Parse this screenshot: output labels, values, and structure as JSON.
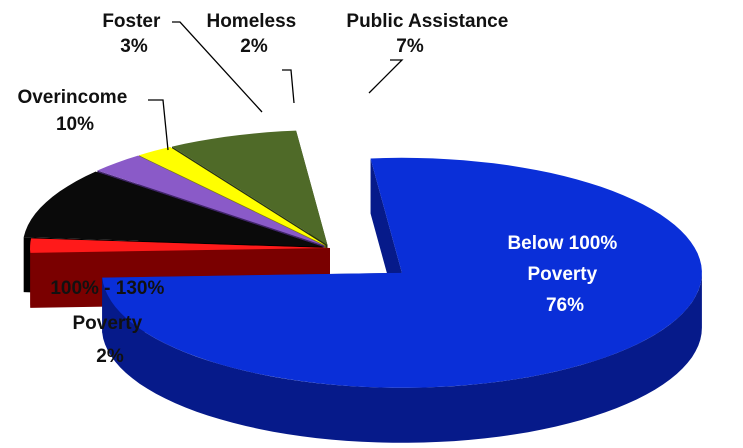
{
  "chart_data": {
    "type": "pie",
    "style": "3d-exploded",
    "title": "",
    "slices": [
      {
        "key": "below100",
        "label_lines": [
          "Below 100%",
          "Poverty",
          "76%"
        ],
        "value": 76,
        "color": "#0a2fd8",
        "side": "#061a8a"
      },
      {
        "key": "r100_130",
        "label_lines": [
          "100% - 130%",
          "Poverty",
          "2%"
        ],
        "value": 2,
        "color": "#ff1a1a",
        "side": "#7a0000"
      },
      {
        "key": "overincome",
        "label_lines": [
          "Overincome",
          "10%"
        ],
        "value": 10,
        "color": "#0a0a0a",
        "side": "#000000"
      },
      {
        "key": "foster",
        "label_lines": [
          "Foster",
          "3%"
        ],
        "value": 3,
        "color": "#8a5ac8",
        "side": "#3f2466"
      },
      {
        "key": "homeless",
        "label_lines": [
          "Homeless",
          "2%"
        ],
        "value": 2,
        "color": "#ffff00",
        "side": "#8a8a00"
      },
      {
        "key": "public",
        "label_lines": [
          "Public Assistance",
          "7%"
        ],
        "value": 7,
        "color": "#4f6a28",
        "side": "#26340f"
      }
    ],
    "legend": "none",
    "data_labels": "outside leaders; largest slice labeled inside"
  }
}
